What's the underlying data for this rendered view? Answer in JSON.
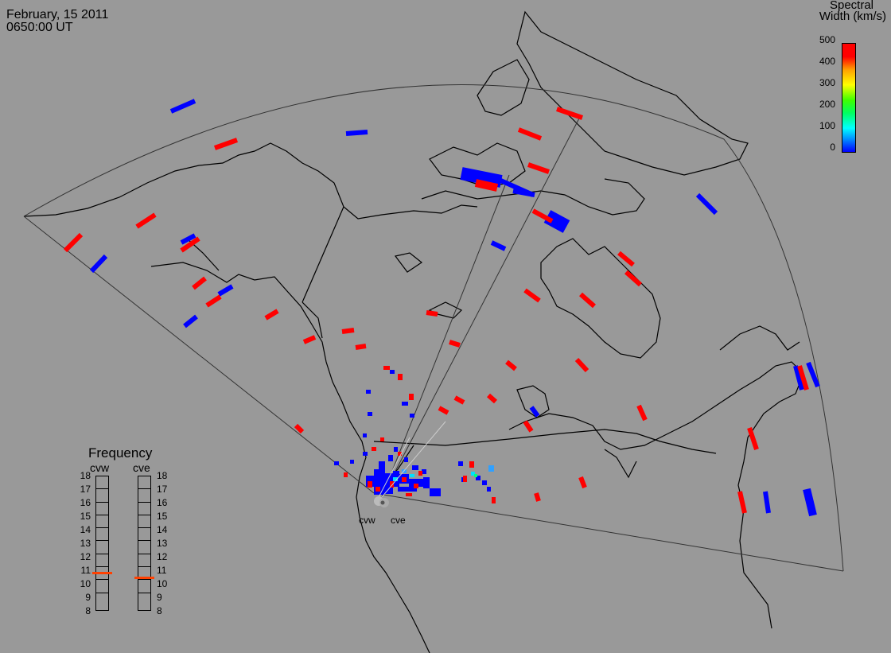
{
  "header": {
    "date": "February, 15 2011",
    "time": "0650:00 UT"
  },
  "colorbar": {
    "title_line1": "Spectral",
    "title_line2": "Width (km/s)",
    "ticks": [
      "500",
      "400",
      "300",
      "200",
      "100",
      "0"
    ],
    "colors": {
      "low": "#0000ff",
      "high": "#ff0000"
    }
  },
  "frequency": {
    "title": "Frequency",
    "radar_labels": [
      "cvw",
      "cve"
    ],
    "ticks": [
      "18",
      "17",
      "16",
      "15",
      "14",
      "13",
      "12",
      "11",
      "10",
      "9",
      "8"
    ],
    "cvw_value_mhz": 10.8,
    "cve_value_mhz": 10.5
  },
  "map": {
    "radar_names": {
      "west": "cvw",
      "east": "cve"
    },
    "colors": {
      "background": "#999999",
      "blue": "#0000ff",
      "red": "#ff0000"
    }
  }
}
